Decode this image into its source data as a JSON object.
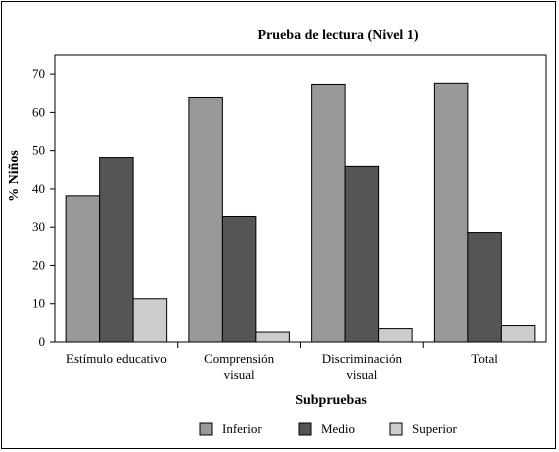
{
  "chart_data": {
    "type": "bar",
    "title": "Prueba de lectura (Nivel 1)",
    "xlabel": "Subpruebas",
    "ylabel": "% Niños",
    "ylim": [
      0,
      75
    ],
    "yticks": [
      "0",
      "10",
      "20",
      "30",
      "40",
      "50",
      "60",
      "70"
    ],
    "categories": [
      [
        "Estímulo educativo"
      ],
      [
        "Comprensión",
        "visual"
      ],
      [
        "Discriminación",
        "visual"
      ],
      [
        "Total"
      ]
    ],
    "series": [
      {
        "name": "Inferior",
        "color": "#999999",
        "values": [
          38.2,
          63.9,
          67.3,
          67.6
        ]
      },
      {
        "name": "Medio",
        "color": "#555555",
        "values": [
          48.2,
          32.8,
          45.9,
          28.6
        ]
      },
      {
        "name": "Superior",
        "color": "#cccccc",
        "values": [
          11.3,
          2.6,
          3.5,
          4.3
        ]
      }
    ],
    "grid": false,
    "legend_position": "bottom"
  }
}
